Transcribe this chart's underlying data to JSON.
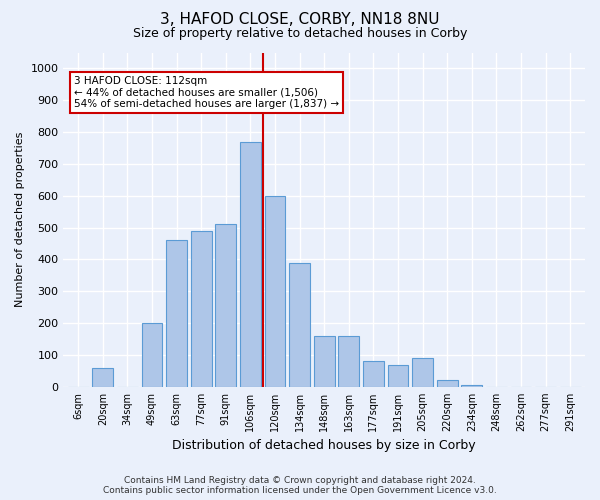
{
  "title": "3, HAFOD CLOSE, CORBY, NN18 8NU",
  "subtitle": "Size of property relative to detached houses in Corby",
  "xlabel": "Distribution of detached houses by size in Corby",
  "ylabel": "Number of detached properties",
  "categories": [
    "6sqm",
    "20sqm",
    "34sqm",
    "49sqm",
    "63sqm",
    "77sqm",
    "91sqm",
    "106sqm",
    "120sqm",
    "134sqm",
    "148sqm",
    "163sqm",
    "177sqm",
    "191sqm",
    "205sqm",
    "220sqm",
    "234sqm",
    "248sqm",
    "262sqm",
    "277sqm",
    "291sqm"
  ],
  "values": [
    0,
    60,
    0,
    200,
    460,
    490,
    510,
    770,
    600,
    390,
    160,
    160,
    80,
    70,
    90,
    20,
    5,
    0,
    0,
    0,
    0
  ],
  "bar_color": "#aec6e8",
  "bar_edge_color": "#5b9bd5",
  "vline_x_index": 7,
  "vline_color": "#cc0000",
  "annotation_text": "3 HAFOD CLOSE: 112sqm\n← 44% of detached houses are smaller (1,506)\n54% of semi-detached houses are larger (1,837) →",
  "annotation_box_color": "#ffffff",
  "annotation_box_edge": "#cc0000",
  "ylim": [
    0,
    1050
  ],
  "yticks": [
    0,
    100,
    200,
    300,
    400,
    500,
    600,
    700,
    800,
    900,
    1000
  ],
  "footer": "Contains HM Land Registry data © Crown copyright and database right 2024.\nContains public sector information licensed under the Open Government Licence v3.0.",
  "bg_color": "#eaf0fb",
  "plot_bg_color": "#eaf0fb",
  "grid_color": "#ffffff",
  "title_fontsize": 11,
  "subtitle_fontsize": 9,
  "ylabel_fontsize": 8,
  "xlabel_fontsize": 9,
  "tick_fontsize": 8,
  "xtick_fontsize": 7,
  "annotation_fontsize": 7.5,
  "footer_fontsize": 6.5
}
